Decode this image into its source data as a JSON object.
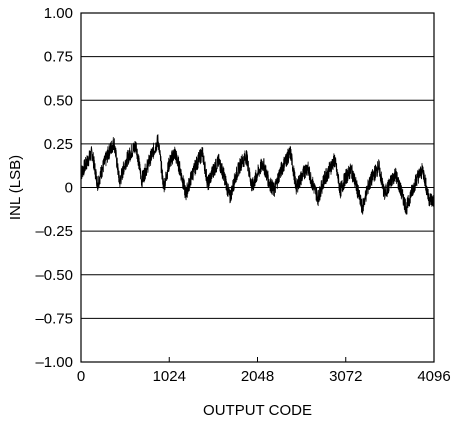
{
  "chart_data": {
    "type": "line",
    "title": "",
    "xlabel": "OUTPUT CODE",
    "ylabel": "INL (LSB)",
    "xlim": [
      0,
      4096
    ],
    "ylim": [
      -1.0,
      1.0
    ],
    "x_ticks": [
      0,
      1024,
      2048,
      3072,
      4096
    ],
    "x_tick_labels": [
      "0",
      "1024",
      "2048",
      "3072",
      "4096"
    ],
    "y_ticks": [
      1.0,
      0.75,
      0.5,
      0.25,
      0,
      -0.25,
      -0.5,
      -0.75,
      -1.0
    ],
    "y_tick_labels": [
      "1.00",
      "0.75",
      "0.50",
      "0.25",
      "0",
      "–0.25",
      "–0.50",
      "–0.75",
      "–1.00"
    ],
    "grid": "horizontal",
    "line_color": "#000000",
    "series": [
      {
        "name": "",
        "x": [
          0,
          64,
          128,
          192,
          256,
          320,
          384,
          448,
          512,
          576,
          640,
          704,
          768,
          832,
          896,
          960,
          1024,
          1088,
          1152,
          1216,
          1280,
          1344,
          1408,
          1472,
          1536,
          1600,
          1664,
          1728,
          1792,
          1856,
          1920,
          1984,
          2048,
          2112,
          2176,
          2240,
          2304,
          2368,
          2432,
          2496,
          2560,
          2624,
          2688,
          2752,
          2816,
          2880,
          2944,
          3008,
          3072,
          3136,
          3200,
          3264,
          3328,
          3392,
          3456,
          3520,
          3584,
          3648,
          3712,
          3776,
          3840,
          3904,
          3968,
          4032,
          4095
        ],
        "values": [
          0.08,
          0.14,
          0.2,
          0.02,
          0.12,
          0.2,
          0.26,
          0.03,
          0.14,
          0.2,
          0.24,
          0.04,
          0.12,
          0.2,
          0.27,
          0.0,
          0.14,
          0.2,
          0.1,
          -0.04,
          0.06,
          0.14,
          0.2,
          0.02,
          0.1,
          0.15,
          0.06,
          -0.06,
          0.06,
          0.14,
          0.18,
          0.0,
          0.08,
          0.14,
          0.04,
          -0.02,
          0.08,
          0.15,
          0.2,
          0.0,
          0.06,
          0.12,
          0.02,
          -0.06,
          0.04,
          0.1,
          0.16,
          -0.02,
          0.06,
          0.1,
          0.0,
          -0.12,
          0.0,
          0.07,
          0.12,
          -0.04,
          0.02,
          0.08,
          -0.02,
          -0.12,
          -0.02,
          0.06,
          0.1,
          -0.06,
          -0.08
        ]
      }
    ]
  }
}
